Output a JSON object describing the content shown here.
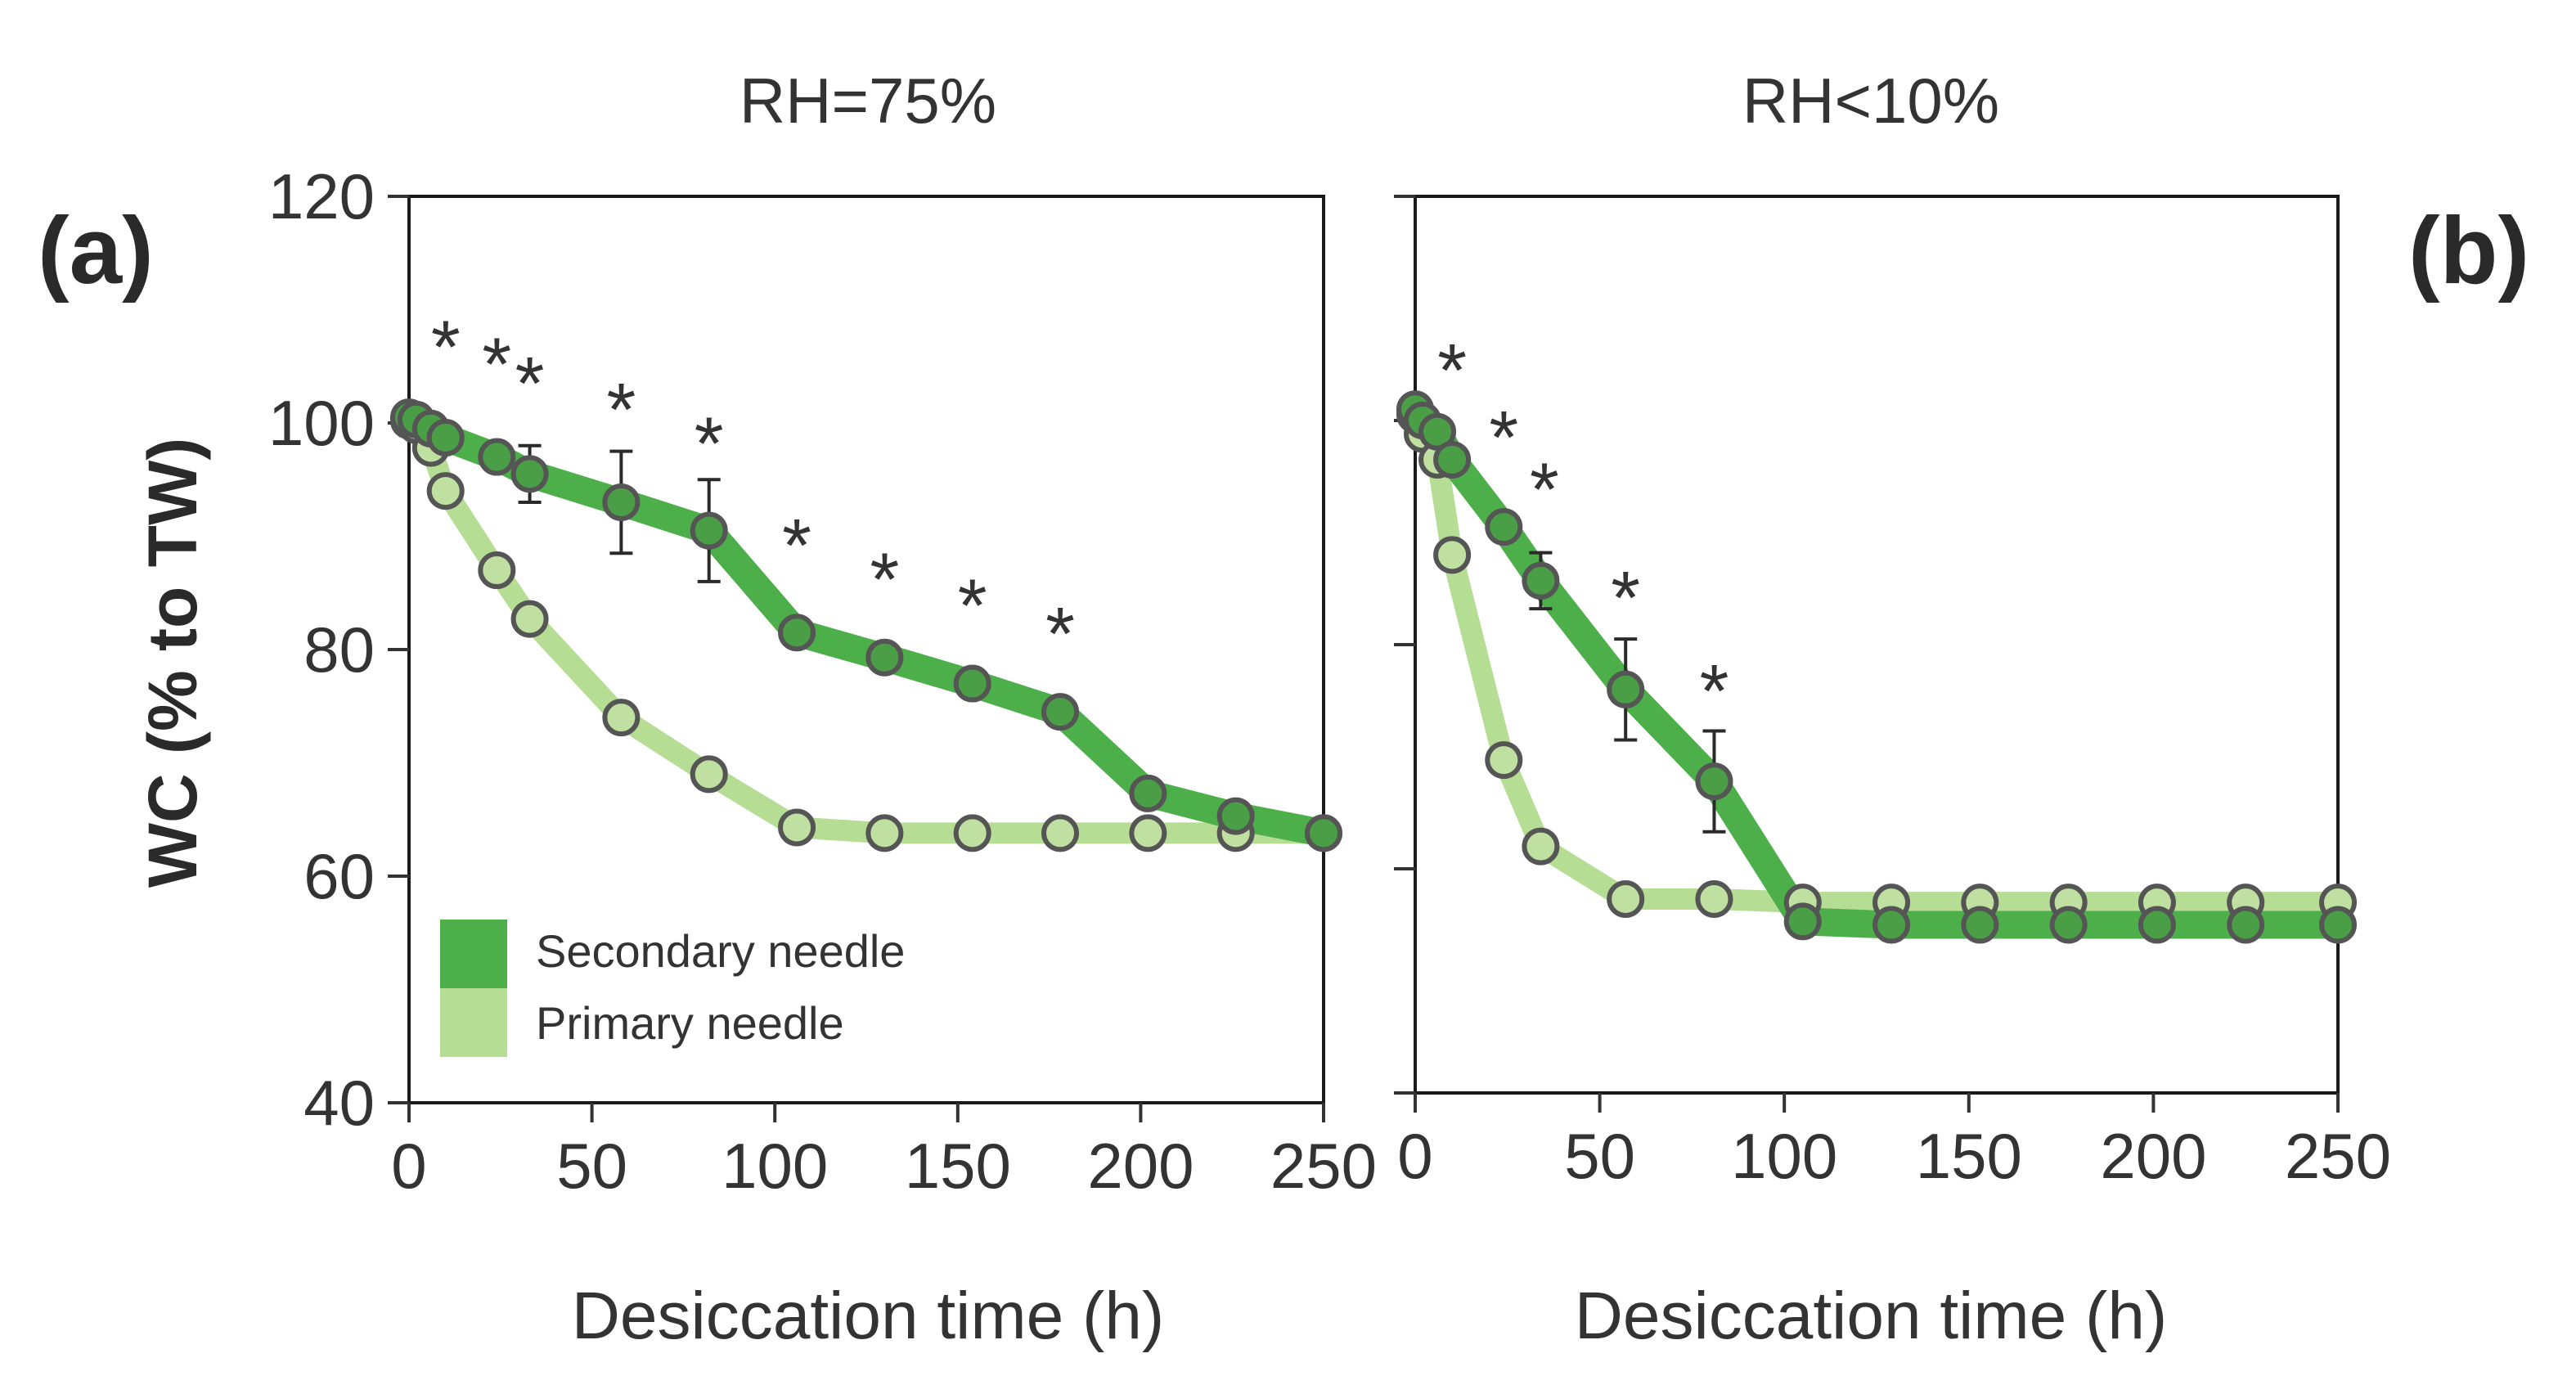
{
  "panel_a_label": "(a)",
  "panel_b_label": "(b)",
  "colors": {
    "secondary": "#4daf4a",
    "primary": "#b5dd94",
    "marker_edge": "#555555",
    "secondary_marker": "#4a9e46",
    "primary_marker": "#bfe0a0"
  },
  "chart_data": [
    {
      "type": "line",
      "title": "RH=75%",
      "xlabel": "Desiccation time (h)",
      "ylabel": "WC (% to TW)",
      "xlim": [
        0,
        250
      ],
      "ylim": [
        40,
        120
      ],
      "xticks": [
        "0",
        "50",
        "100",
        "150",
        "200",
        "250"
      ],
      "yticks": [
        "40",
        "60",
        "80",
        "100",
        "120"
      ],
      "x_tick_values": [
        0,
        50,
        100,
        150,
        200,
        250
      ],
      "y_tick_values": [
        40,
        60,
        80,
        100,
        120
      ],
      "legend": [
        "Secondary needle",
        "Primary needle"
      ],
      "legend_position": "bottom-left",
      "series": [
        {
          "name": "Secondary needle",
          "x": [
            0,
            2,
            6,
            10,
            24,
            33,
            58,
            82,
            106,
            130,
            154,
            178,
            202,
            226,
            250
          ],
          "y": [
            100.5,
            100.3,
            99.5,
            98.7,
            97,
            95.5,
            93,
            90.5,
            81.5,
            79.3,
            77,
            74.5,
            67.3,
            65.3,
            63.8
          ],
          "err": [
            0,
            0,
            0,
            0,
            0,
            2.5,
            4.5,
            4.5,
            0,
            0,
            0,
            0,
            0,
            0,
            0
          ]
        },
        {
          "name": "Primary needle",
          "x": [
            0,
            2,
            6,
            10,
            24,
            33,
            58,
            82,
            106,
            130,
            154,
            178,
            202,
            226,
            250
          ],
          "y": [
            100.2,
            99.8,
            97.8,
            94,
            87,
            82.7,
            74,
            69,
            64.3,
            63.8,
            63.8,
            63.8,
            63.8,
            63.8,
            63.8
          ],
          "err": [
            0,
            0,
            0,
            0,
            0,
            0,
            0,
            0,
            0,
            0,
            0,
            0,
            0,
            0,
            0
          ]
        }
      ],
      "annotations": [
        {
          "text": "*",
          "x": 10,
          "y": 108
        },
        {
          "text": "*",
          "x": 24,
          "y": 106.5
        },
        {
          "text": "*",
          "x": 33,
          "y": 104.8
        },
        {
          "text": "*",
          "x": 58,
          "y": 102.5
        },
        {
          "text": "*",
          "x": 82,
          "y": 99.5
        },
        {
          "text": "*",
          "x": 106,
          "y": 90.5
        },
        {
          "text": "*",
          "x": 130,
          "y": 87.5
        },
        {
          "text": "*",
          "x": 154,
          "y": 85.2
        },
        {
          "text": "*",
          "x": 178,
          "y": 82.7
        }
      ]
    },
    {
      "type": "line",
      "title": "RH<10%",
      "xlabel": "Desiccation time (h)",
      "ylabel": "",
      "xlim": [
        0,
        250
      ],
      "ylim": [
        40,
        120
      ],
      "xticks": [
        "0",
        "50",
        "100",
        "150",
        "200",
        "250"
      ],
      "yticks": [],
      "x_tick_values": [
        0,
        50,
        100,
        150,
        200,
        250
      ],
      "y_tick_values": [
        40,
        60,
        80,
        100,
        120
      ],
      "series": [
        {
          "name": "Secondary needle",
          "x": [
            0,
            2,
            6,
            10,
            24,
            34,
            57,
            81,
            105,
            129,
            153,
            177,
            201,
            225,
            250
          ],
          "y": [
            101,
            100,
            99,
            96.5,
            90.5,
            85.7,
            76,
            67.8,
            55.3,
            55,
            55,
            55,
            55,
            55,
            55
          ],
          "err": [
            0,
            0,
            0,
            0,
            0,
            2.5,
            4.5,
            4.5,
            0,
            0,
            0,
            0,
            0,
            0,
            0
          ]
        },
        {
          "name": "Primary needle",
          "x": [
            0,
            2,
            6,
            10,
            24,
            34,
            57,
            81,
            105,
            129,
            153,
            177,
            201,
            225,
            250
          ],
          "y": [
            100.5,
            98.8,
            96.5,
            88,
            69.7,
            62,
            57.3,
            57.3,
            57,
            57,
            57,
            57,
            57,
            57,
            57
          ],
          "err": [
            0,
            0,
            0,
            0,
            0,
            0,
            0,
            0,
            0,
            0,
            0,
            0,
            0,
            0,
            0
          ]
        }
      ],
      "annotations": [
        {
          "text": "*",
          "x": 10,
          "y": 105.8
        },
        {
          "text": "*",
          "x": 24,
          "y": 99.8
        },
        {
          "text": "*",
          "x": 35,
          "y": 95.2
        },
        {
          "text": "*",
          "x": 57,
          "y": 85.5
        },
        {
          "text": "*",
          "x": 81,
          "y": 77.2
        }
      ]
    }
  ]
}
